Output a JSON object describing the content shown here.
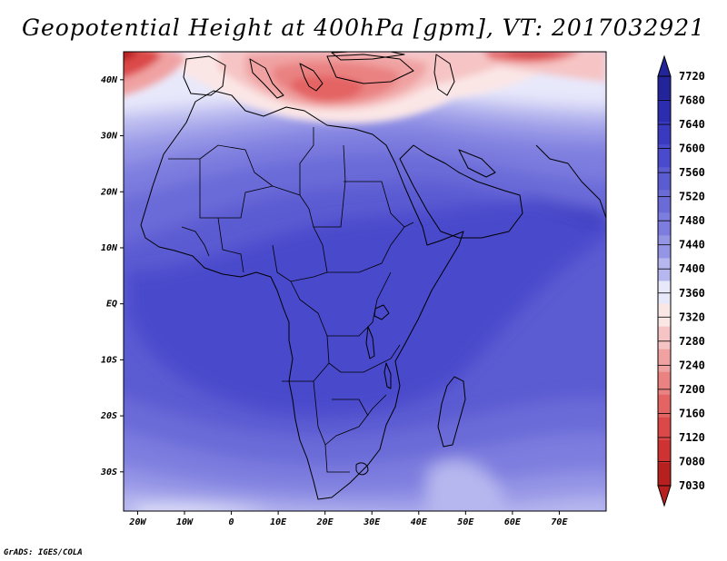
{
  "title": "Geopotential Height at 400hPa [gpm], VT: 2017032921",
  "credit": "GrADS: IGES/COLA",
  "map": {
    "lon_range": [
      -23,
      80
    ],
    "lat_range": [
      -37,
      45
    ],
    "lat_ticks": [
      {
        "label": "40N",
        "value": 40
      },
      {
        "label": "30N",
        "value": 30
      },
      {
        "label": "20N",
        "value": 20
      },
      {
        "label": "10N",
        "value": 10
      },
      {
        "label": "EQ",
        "value": 0
      },
      {
        "label": "10S",
        "value": -10
      },
      {
        "label": "20S",
        "value": -20
      },
      {
        "label": "30S",
        "value": -30
      }
    ],
    "lon_ticks": [
      {
        "label": "20W",
        "value": -20
      },
      {
        "label": "10W",
        "value": -10
      },
      {
        "label": "0",
        "value": 0
      },
      {
        "label": "10E",
        "value": 10
      },
      {
        "label": "20E",
        "value": 20
      },
      {
        "label": "30E",
        "value": 30
      },
      {
        "label": "40E",
        "value": 40
      },
      {
        "label": "50E",
        "value": 50
      },
      {
        "label": "60E",
        "value": 60
      },
      {
        "label": "70E",
        "value": 70
      }
    ]
  },
  "colorbar": {
    "levels": [
      "7720",
      "7680",
      "7640",
      "7600",
      "7560",
      "7520",
      "7480",
      "7440",
      "7400",
      "7360",
      "7320",
      "7280",
      "7240",
      "7200",
      "7160",
      "7120",
      "7080",
      "7030"
    ],
    "colors": [
      "#24249a",
      "#2c2cae",
      "#3a3ac0",
      "#4a4acc",
      "#5b5bd2",
      "#6b6bd8",
      "#7d7ddf",
      "#9595e6",
      "#b7b7ef",
      "#e8e8fb",
      "#fbe6e6",
      "#f6c4c4",
      "#f0a2a2",
      "#ea8282",
      "#e46464",
      "#dc4848",
      "#ce3232",
      "#b81f1f"
    ]
  }
}
